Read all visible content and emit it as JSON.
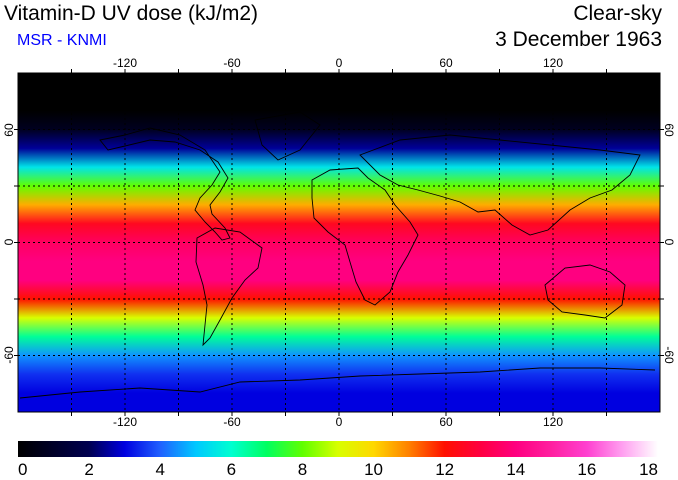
{
  "header": {
    "title": "Vitamin-D UV dose (kJ/m2)",
    "subtitle": "MSR - KNMI",
    "mode": "Clear-sky",
    "date": "3 December 1963"
  },
  "map": {
    "projection": "equirectangular",
    "lon_range": [
      -180,
      180
    ],
    "lat_range": [
      -90,
      90
    ],
    "lon_ticks": [
      -120,
      -60,
      0,
      60,
      120
    ],
    "lat_ticks": [
      60,
      0,
      -60
    ],
    "lon_tick_labels": [
      "-120",
      "-60",
      "0",
      "60",
      "120"
    ],
    "lat_tick_labels": [
      "60",
      "0",
      "-60"
    ],
    "grid": true,
    "grid_lons": [
      -150,
      -120,
      -90,
      -60,
      -30,
      0,
      30,
      60,
      90,
      120,
      150
    ],
    "grid_lats": [
      60,
      30,
      0,
      -30,
      -60
    ],
    "dose_by_latitude": [
      {
        "lat": 90,
        "dose": 0
      },
      {
        "lat": 70,
        "dose": 0
      },
      {
        "lat": 60,
        "dose": 0.8
      },
      {
        "lat": 50,
        "dose": 2.5
      },
      {
        "lat": 40,
        "dose": 5.5
      },
      {
        "lat": 30,
        "dose": 8
      },
      {
        "lat": 20,
        "dose": 10.5
      },
      {
        "lat": 10,
        "dose": 12.5
      },
      {
        "lat": 0,
        "dose": 13.5
      },
      {
        "lat": -10,
        "dose": 14
      },
      {
        "lat": -20,
        "dose": 14
      },
      {
        "lat": -30,
        "dose": 12
      },
      {
        "lat": -40,
        "dose": 9
      },
      {
        "lat": -50,
        "dose": 6.5
      },
      {
        "lat": -60,
        "dose": 4.5
      },
      {
        "lat": -70,
        "dose": 3.5
      },
      {
        "lat": -80,
        "dose": 3
      },
      {
        "lat": -90,
        "dose": 3
      }
    ]
  },
  "colorbar": {
    "min": 0,
    "max": 18,
    "tick_labels": [
      "0",
      "2",
      "4",
      "6",
      "8",
      "10",
      "12",
      "14",
      "16",
      "18"
    ],
    "color_stops": [
      {
        "value": 0,
        "color": "#000000"
      },
      {
        "value": 2,
        "color": "#000050"
      },
      {
        "value": 3,
        "color": "#0000e0"
      },
      {
        "value": 4,
        "color": "#2060ff"
      },
      {
        "value": 5,
        "color": "#00c8ff"
      },
      {
        "value": 6,
        "color": "#00ffd0"
      },
      {
        "value": 7,
        "color": "#00ff60"
      },
      {
        "value": 8,
        "color": "#60ff00"
      },
      {
        "value": 9,
        "color": "#d8ff00"
      },
      {
        "value": 10,
        "color": "#ffd800"
      },
      {
        "value": 11,
        "color": "#ff8000"
      },
      {
        "value": 12,
        "color": "#ff1000"
      },
      {
        "value": 13,
        "color": "#ff0040"
      },
      {
        "value": 14,
        "color": "#ff0080"
      },
      {
        "value": 15,
        "color": "#ff20a0"
      },
      {
        "value": 16,
        "color": "#ff40d0"
      },
      {
        "value": 17,
        "color": "#ffa0f0"
      },
      {
        "value": 18,
        "color": "#ffffff"
      }
    ]
  }
}
